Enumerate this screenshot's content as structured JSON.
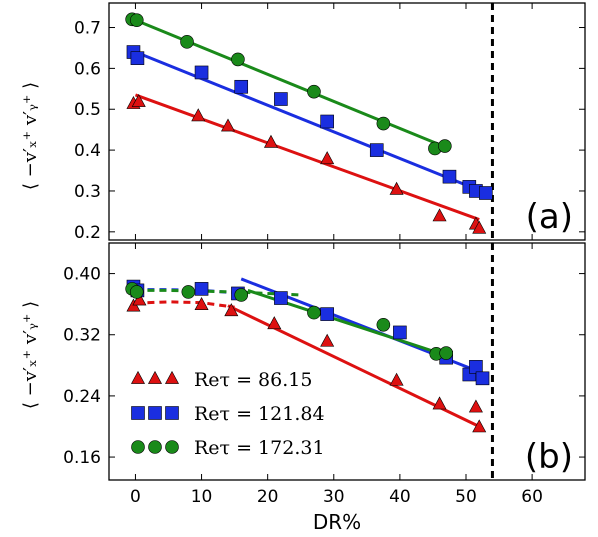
{
  "chart_data": [
    {
      "type": "scatter",
      "panel_label": "(a)",
      "ylabel": "⟨ −v′ₓ⁺ v′ᵧ⁺ ⟩",
      "xlabel": "",
      "xlim": [
        -4,
        68
      ],
      "ylim": [
        0.18,
        0.76
      ],
      "yticks": [
        0.2,
        0.3,
        0.4,
        0.5,
        0.6,
        0.7
      ],
      "ytick_labels": [
        "0.2",
        "0.3",
        "0.4",
        "0.5",
        "0.6",
        "0.7"
      ],
      "vline_x": 54,
      "series": [
        {
          "marker": "triangle",
          "color": "#dd1111",
          "points": [
            [
              -0.3,
              0.515
            ],
            [
              0.5,
              0.52
            ],
            [
              9.5,
              0.485
            ],
            [
              14,
              0.46
            ],
            [
              20.5,
              0.42
            ],
            [
              29,
              0.38
            ],
            [
              39.5,
              0.305
            ],
            [
              46,
              0.24
            ],
            [
              51.5,
              0.22
            ],
            [
              52,
              0.21
            ]
          ],
          "fit": {
            "style": "solid",
            "x": [
              0,
              52
            ],
            "y": [
              0.535,
              0.23
            ]
          }
        },
        {
          "marker": "square",
          "color": "#1a2ee0",
          "points": [
            [
              -0.3,
              0.64
            ],
            [
              0.3,
              0.625
            ],
            [
              10,
              0.59
            ],
            [
              16,
              0.555
            ],
            [
              22,
              0.525
            ],
            [
              29,
              0.47
            ],
            [
              36.5,
              0.4
            ],
            [
              47.5,
              0.335
            ],
            [
              50.5,
              0.31
            ],
            [
              51.5,
              0.3
            ],
            [
              53,
              0.295
            ]
          ],
          "fit": {
            "style": "solid",
            "x": [
              0,
              53
            ],
            "y": [
              0.64,
              0.295
            ]
          }
        },
        {
          "marker": "circle",
          "color": "#1a8a1a",
          "points": [
            [
              -0.5,
              0.72
            ],
            [
              0.2,
              0.718
            ],
            [
              7.8,
              0.665
            ],
            [
              15.5,
              0.622
            ],
            [
              27,
              0.543
            ],
            [
              37.5,
              0.465
            ],
            [
              45.3,
              0.404
            ],
            [
              46.8,
              0.41
            ]
          ],
          "fit": {
            "style": "solid",
            "x": [
              0,
              46.5
            ],
            "y": [
              0.718,
              0.41
            ]
          }
        }
      ]
    },
    {
      "type": "scatter",
      "panel_label": "(b)",
      "ylabel": "⟨ −v′ₓ⁺ v′ᵧ⁺ ⟩",
      "xlabel": "DR%",
      "xlim": [
        -4,
        68
      ],
      "ylim": [
        0.13,
        0.44
      ],
      "xticks": [
        0,
        10,
        20,
        30,
        40,
        50,
        60
      ],
      "xtick_labels": [
        "0",
        "10",
        "20",
        "30",
        "40",
        "50",
        "60"
      ],
      "yticks": [
        0.16,
        0.24,
        0.32,
        0.4
      ],
      "ytick_labels": [
        "0.16",
        "0.24",
        "0.32",
        "0.40"
      ],
      "vline_x": 54,
      "legend": {
        "placement": "lower-left",
        "entries": [
          "Reτ = 86.15",
          "Reτ = 121.84",
          "Reτ = 172.31"
        ]
      },
      "series": [
        {
          "name": "Reτ = 86.15",
          "marker": "triangle",
          "color": "#dd1111",
          "points": [
            [
              -0.3,
              0.358
            ],
            [
              0.6,
              0.366
            ],
            [
              10,
              0.36
            ],
            [
              14.5,
              0.352
            ],
            [
              21,
              0.335
            ],
            [
              29,
              0.312
            ],
            [
              39.5,
              0.261
            ],
            [
              46,
              0.23
            ],
            [
              51.5,
              0.226
            ],
            [
              52,
              0.2
            ]
          ],
          "dashed_fit": {
            "x": [
              0,
              2,
              5,
              10,
              15
            ],
            "y": [
              0.361,
              0.362,
              0.363,
              0.362,
              0.356
            ]
          },
          "fit": {
            "x": [
              14,
              52
            ],
            "y": [
              0.358,
              0.2
            ]
          }
        },
        {
          "name": "Reτ = 121.84",
          "marker": "square",
          "color": "#1a2ee0",
          "points": [
            [
              -0.3,
              0.383
            ],
            [
              0.3,
              0.378
            ],
            [
              10,
              0.38
            ],
            [
              15.5,
              0.374
            ],
            [
              22,
              0.368
            ],
            [
              29,
              0.347
            ],
            [
              40,
              0.323
            ],
            [
              47,
              0.29
            ],
            [
              50.5,
              0.268
            ],
            [
              51.5,
              0.278
            ],
            [
              52.5,
              0.263
            ]
          ],
          "dashed_fit": {
            "x": [
              0,
              5,
              10,
              15
            ],
            "y": [
              0.379,
              0.379,
              0.378,
              0.375
            ]
          },
          "fit": {
            "x": [
              16,
              52.5
            ],
            "y": [
              0.393,
              0.27
            ]
          }
        },
        {
          "name": "Reτ = 172.31",
          "marker": "circle",
          "color": "#1a8a1a",
          "points": [
            [
              -0.5,
              0.38
            ],
            [
              0.2,
              0.376
            ],
            [
              8,
              0.376
            ],
            [
              16,
              0.372
            ],
            [
              27,
              0.349
            ],
            [
              37.5,
              0.333
            ],
            [
              45.5,
              0.295
            ],
            [
              47,
              0.296
            ]
          ],
          "dashed_fit": {
            "x": [
              0,
              5,
              10,
              15,
              20,
              25
            ],
            "y": [
              0.378,
              0.378,
              0.377,
              0.376,
              0.374,
              0.372
            ]
          },
          "fit": {
            "x": [
              17,
              47
            ],
            "y": [
              0.378,
              0.293
            ]
          }
        }
      ]
    }
  ]
}
